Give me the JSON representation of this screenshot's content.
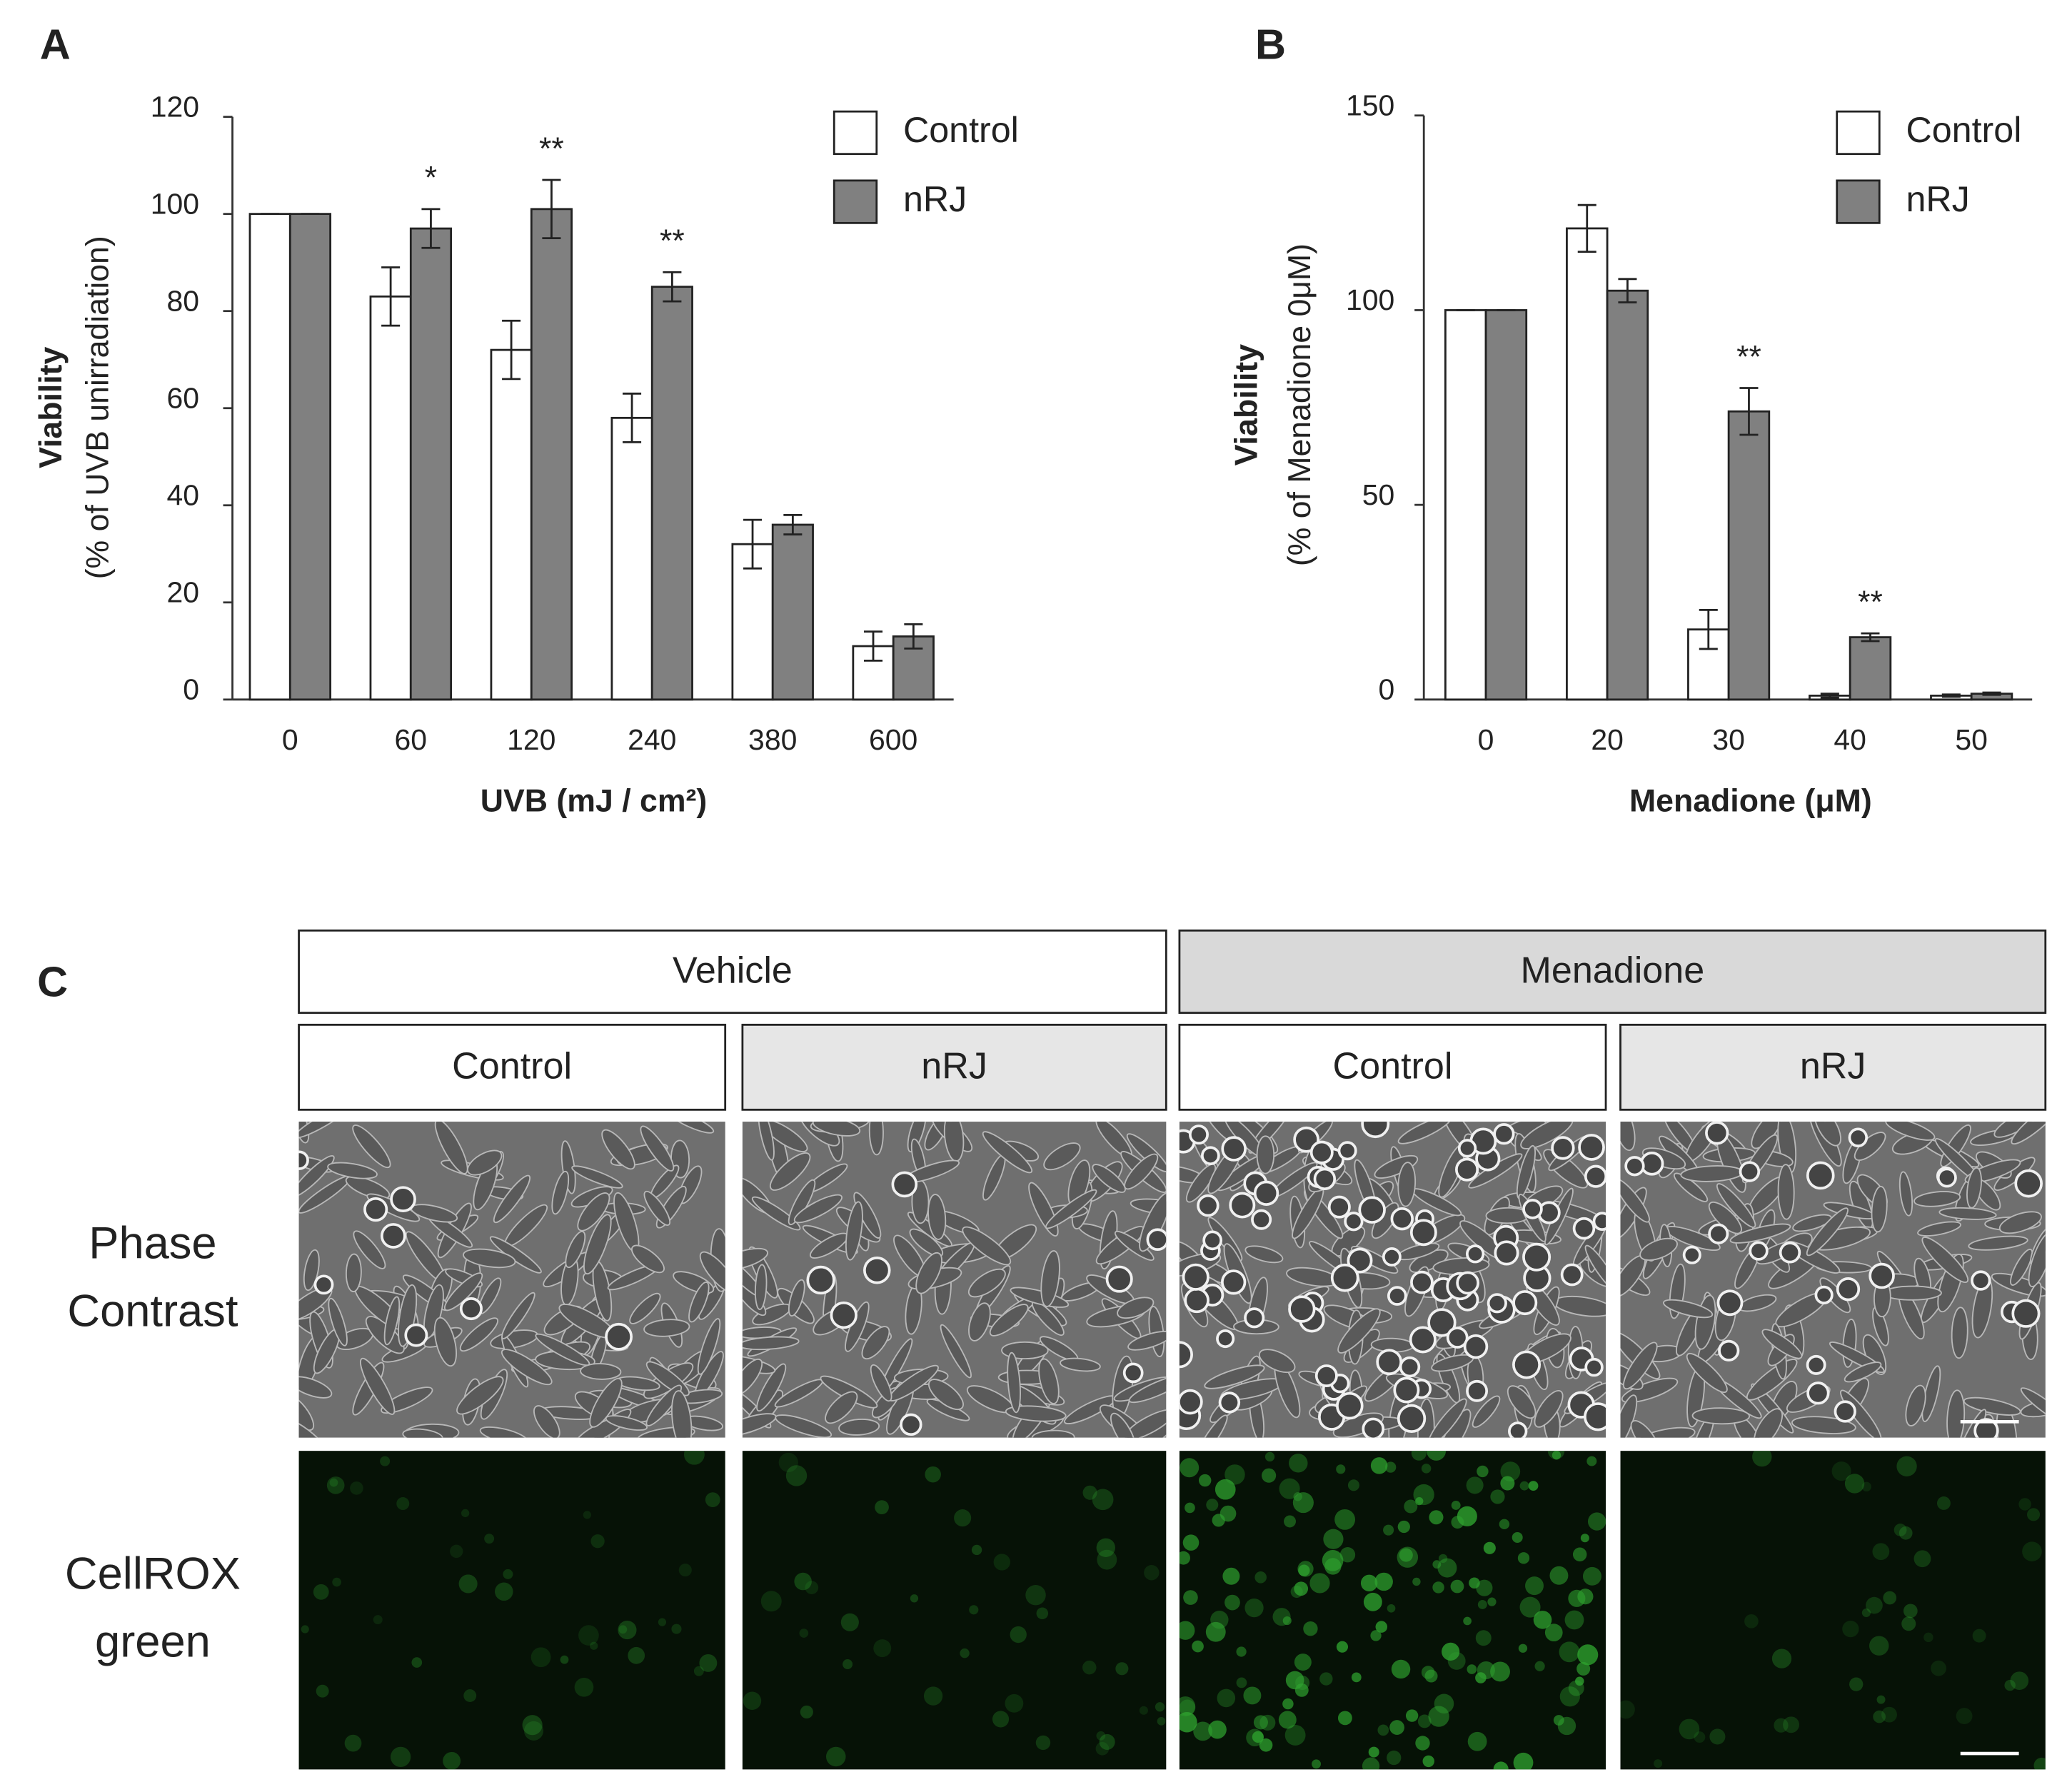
{
  "chart_data": [
    {
      "type": "bar",
      "panel_label": "A",
      "ylabel": "Viability",
      "ylabel_sub": "(% of UVB unirradiation)",
      "xlabel": "UVB (mJ / cm²)",
      "categories": [
        "0",
        "60",
        "120",
        "240",
        "380",
        "600"
      ],
      "series": [
        {
          "name": "Control",
          "color": "#ffffff",
          "values": [
            100,
            83,
            72,
            58,
            32,
            11
          ],
          "errors": [
            0,
            6,
            6,
            5,
            5,
            3
          ]
        },
        {
          "name": "nRJ",
          "color": "#808080",
          "values": [
            100,
            97,
            101,
            85,
            36,
            13
          ],
          "errors": [
            0,
            4,
            6,
            3,
            2,
            2.5
          ]
        }
      ],
      "annotations": [
        null,
        "*",
        "**",
        "**",
        null,
        null
      ],
      "ylim": [
        0,
        120
      ],
      "yticks": [
        0,
        20,
        40,
        60,
        80,
        100,
        120
      ]
    },
    {
      "type": "bar",
      "panel_label": "B",
      "ylabel": "Viability",
      "ylabel_sub": "(% of Menadione 0μM)",
      "xlabel": "Menadione (μM)",
      "categories": [
        "0",
        "20",
        "30",
        "40",
        "50"
      ],
      "series": [
        {
          "name": "Control",
          "color": "#ffffff",
          "values": [
            100,
            121,
            18,
            1,
            1
          ],
          "errors": [
            0,
            6,
            5,
            0.5,
            0.3
          ]
        },
        {
          "name": "nRJ",
          "color": "#808080",
          "values": [
            100,
            105,
            74,
            16,
            1.5
          ],
          "errors": [
            0,
            3,
            6,
            1,
            0.3
          ]
        }
      ],
      "annotations": [
        null,
        null,
        "**",
        "**",
        null
      ],
      "ylim": [
        0,
        150
      ],
      "yticks": [
        0,
        50,
        100,
        150
      ]
    }
  ],
  "panel_c": {
    "label": "C",
    "groups": [
      "Vehicle",
      "Menadione"
    ],
    "conditions": [
      "Control",
      "nRJ",
      "Control",
      "nRJ"
    ],
    "rows": [
      [
        "Phase",
        "Contrast"
      ],
      [
        "CellROX",
        "green"
      ]
    ]
  }
}
